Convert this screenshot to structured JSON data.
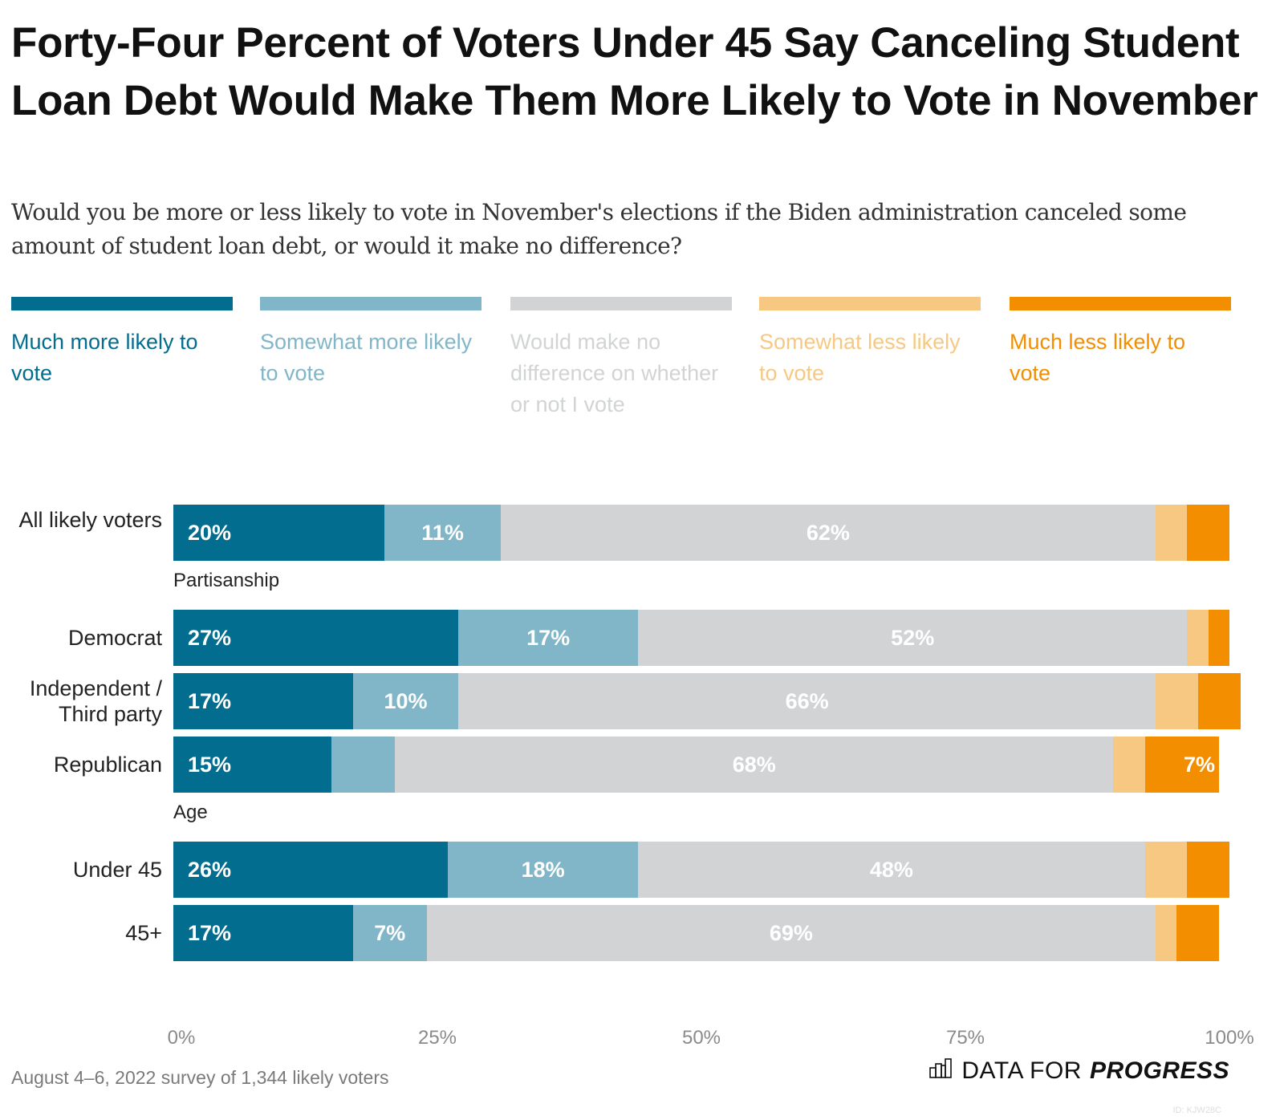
{
  "header": {
    "title": "Forty-Four Percent of Voters Under 45 Say Canceling Student Loan Debt Would Make Them More Likely to Vote in November",
    "subtitle": "Would you be more or less likely to vote in November's elections if the Biden administration canceled some amount of student loan debt, or would it make no difference?"
  },
  "footer": {
    "note": "August 4–6, 2022 survey of 1,344 likely voters",
    "brand_regular": "DATA FOR",
    "brand_bold": "PROGRESS",
    "brand_icon": "bar-chart-icon",
    "id_text": "ID: KJW28C"
  },
  "chart_data": {
    "type": "bar",
    "orientation": "horizontal-stacked-100",
    "title": "Forty-Four Percent of Voters Under 45 Say Canceling Student Loan Debt Would Make Them More Likely to Vote in November",
    "xlabel": "",
    "ylabel": "",
    "xlim": [
      0,
      100
    ],
    "x_ticks": [
      "0%",
      "25%",
      "50%",
      "75%",
      "100%"
    ],
    "x_tick_values": [
      0,
      25,
      50,
      75,
      100
    ],
    "legend_position": "top",
    "series": [
      {
        "name": "Much more likely to vote",
        "color": "#026d8f"
      },
      {
        "name": "Somewhat more likely to vote",
        "color": "#80b6c8"
      },
      {
        "name": "Would make no difference on whether or not I vote",
        "color": "#d1d3d4"
      },
      {
        "name": "Somewhat less likely to vote",
        "color": "#f7c882"
      },
      {
        "name": "Much less likely to vote",
        "color": "#f28e00"
      }
    ],
    "groups": [
      {
        "label": "",
        "rows": [
          {
            "category": "All likely voters",
            "values": [
              20,
              11,
              62,
              3,
              4
            ],
            "labels": [
              "20%",
              "11%",
              "62%",
              "",
              ""
            ]
          }
        ]
      },
      {
        "label": "Partisanship",
        "rows": [
          {
            "category": "Democrat",
            "values": [
              27,
              17,
              52,
              2,
              2
            ],
            "labels": [
              "27%",
              "17%",
              "52%",
              "",
              ""
            ]
          },
          {
            "category": "Independent / Third party",
            "values": [
              17,
              10,
              66,
              4,
              4
            ],
            "labels": [
              "17%",
              "10%",
              "66%",
              "",
              ""
            ]
          },
          {
            "category": "Republican",
            "values": [
              15,
              6,
              68,
              3,
              7
            ],
            "labels": [
              "15%",
              "",
              "68%",
              "",
              "7%"
            ]
          }
        ]
      },
      {
        "label": "Age",
        "rows": [
          {
            "category": "Under 45",
            "values": [
              26,
              18,
              48,
              4,
              4
            ],
            "labels": [
              "26%",
              "18%",
              "48%",
              "",
              ""
            ]
          },
          {
            "category": "45+",
            "values": [
              17,
              7,
              69,
              2,
              4
            ],
            "labels": [
              "17%",
              "7%",
              "69%",
              "",
              ""
            ]
          }
        ]
      }
    ]
  }
}
